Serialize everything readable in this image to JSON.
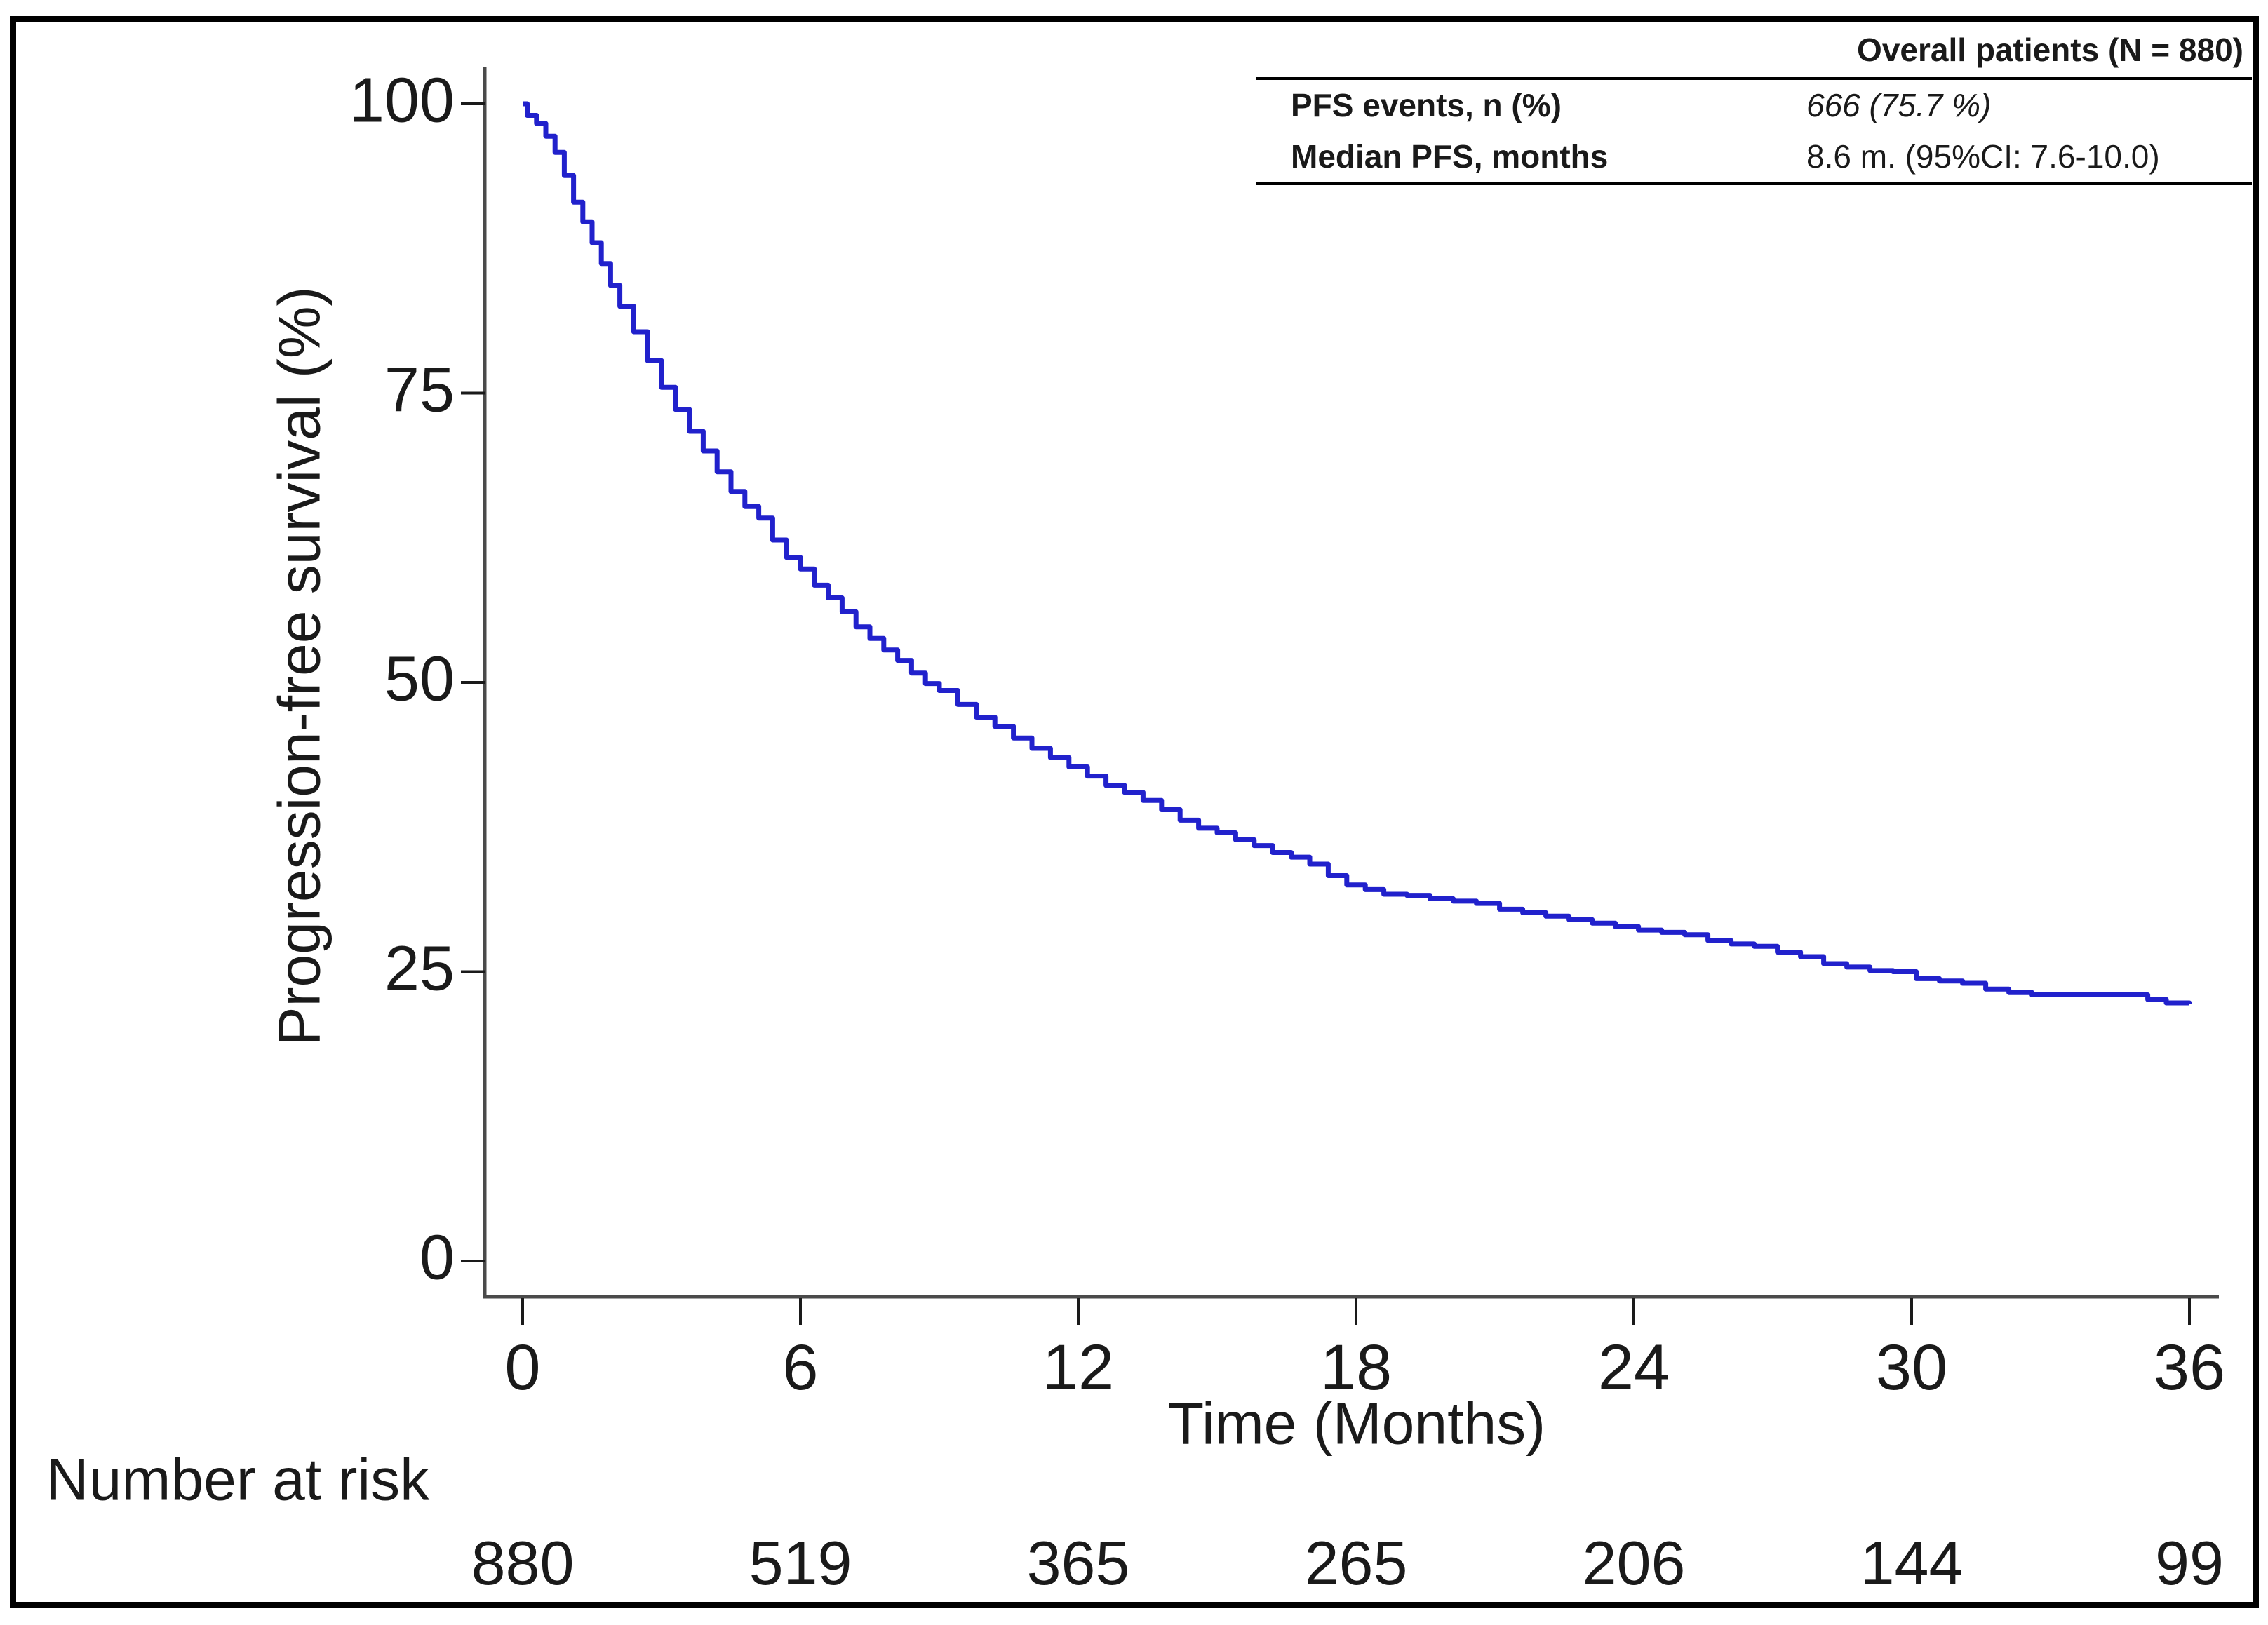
{
  "figure": {
    "background": "#ffffff",
    "border_color": "#000000"
  },
  "stats_table": {
    "header": "Overall patients  (N = 880)",
    "rows": [
      {
        "label": "PFS events, n (%)",
        "value": "666 (75.7 %)"
      },
      {
        "label": "Median PFS, months",
        "value": "8.6 m. (95%CI: 7.6-10.0)"
      }
    ]
  },
  "chart_data": {
    "type": "line",
    "subtype": "kaplan-meier-step",
    "title": "",
    "xlabel": "Time (Months)",
    "ylabel": "Progression-free survival (%)",
    "xlim": [
      0,
      36
    ],
    "ylim": [
      0,
      100
    ],
    "xticks": [
      0,
      6,
      12,
      18,
      24,
      30,
      36
    ],
    "yticks": [
      100,
      75,
      50,
      25,
      0
    ],
    "grid": false,
    "legend_position": "none",
    "line_color": "#2121cc",
    "axis_color": "#4a4a4a",
    "tick_color": "#1a1a1a",
    "series": [
      {
        "name": "Overall patients",
        "points": [
          [
            0,
            100
          ],
          [
            0.1,
            99
          ],
          [
            0.3,
            98.3
          ],
          [
            0.5,
            97.2
          ],
          [
            0.7,
            95.8
          ],
          [
            0.9,
            93.8
          ],
          [
            1.1,
            91.5
          ],
          [
            1.3,
            89.8
          ],
          [
            1.5,
            88
          ],
          [
            1.7,
            86.2
          ],
          [
            1.9,
            84.3
          ],
          [
            2.1,
            82.5
          ],
          [
            2.4,
            80.3
          ],
          [
            2.7,
            77.8
          ],
          [
            3,
            75.5
          ],
          [
            3.3,
            73.6
          ],
          [
            3.6,
            71.7
          ],
          [
            3.9,
            70
          ],
          [
            4.2,
            68.2
          ],
          [
            4.5,
            66.5
          ],
          [
            4.8,
            65.2
          ],
          [
            5.1,
            64.2
          ],
          [
            5.4,
            62.3
          ],
          [
            5.7,
            60.8
          ],
          [
            6,
            59.8
          ],
          [
            6.3,
            58.4
          ],
          [
            6.6,
            57.3
          ],
          [
            6.9,
            56.1
          ],
          [
            7.2,
            54.8
          ],
          [
            7.5,
            53.8
          ],
          [
            7.8,
            52.8
          ],
          [
            8.1,
            51.9
          ],
          [
            8.4,
            50.8
          ],
          [
            8.7,
            49.9
          ],
          [
            9,
            49.3
          ],
          [
            9.4,
            48.1
          ],
          [
            9.8,
            47
          ],
          [
            10.2,
            46.2
          ],
          [
            10.6,
            45.2
          ],
          [
            11,
            44.3
          ],
          [
            11.4,
            43.5
          ],
          [
            11.8,
            42.7
          ],
          [
            12.2,
            41.9
          ],
          [
            12.6,
            41.1
          ],
          [
            13,
            40.5
          ],
          [
            13.4,
            39.8
          ],
          [
            13.8,
            39
          ],
          [
            14.2,
            38.1
          ],
          [
            14.6,
            37.4
          ],
          [
            15,
            37
          ],
          [
            15.4,
            36.4
          ],
          [
            15.8,
            35.9
          ],
          [
            16.2,
            35.3
          ],
          [
            16.6,
            34.9
          ],
          [
            17,
            34.3
          ],
          [
            17.4,
            33.3
          ],
          [
            17.8,
            32.5
          ],
          [
            18.2,
            32.1
          ],
          [
            18.6,
            31.7
          ],
          [
            19.1,
            31.6
          ],
          [
            19.6,
            31.3
          ],
          [
            20.1,
            31.1
          ],
          [
            20.6,
            30.9
          ],
          [
            21.1,
            30.4
          ],
          [
            21.6,
            30.1
          ],
          [
            22.1,
            29.8
          ],
          [
            22.6,
            29.5
          ],
          [
            23.1,
            29.2
          ],
          [
            23.6,
            28.9
          ],
          [
            24.1,
            28.6
          ],
          [
            24.6,
            28.4
          ],
          [
            25.1,
            28.2
          ],
          [
            25.6,
            27.7
          ],
          [
            26.1,
            27.4
          ],
          [
            26.6,
            27.2
          ],
          [
            27.1,
            26.7
          ],
          [
            27.6,
            26.3
          ],
          [
            28.1,
            25.7
          ],
          [
            28.6,
            25.4
          ],
          [
            29.1,
            25.1
          ],
          [
            29.6,
            25
          ],
          [
            30.1,
            24.4
          ],
          [
            30.6,
            24.2
          ],
          [
            31.1,
            24
          ],
          [
            31.6,
            23.5
          ],
          [
            32.1,
            23.2
          ],
          [
            32.6,
            23
          ],
          [
            34.8,
            23
          ],
          [
            35.1,
            22.6
          ],
          [
            35.5,
            22.3
          ],
          [
            36,
            22.2
          ]
        ]
      }
    ],
    "number_at_risk": {
      "label": "Number at risk",
      "times": [
        0,
        6,
        12,
        18,
        24,
        30,
        36
      ],
      "counts": [
        880,
        519,
        365,
        265,
        206,
        144,
        99
      ]
    }
  }
}
